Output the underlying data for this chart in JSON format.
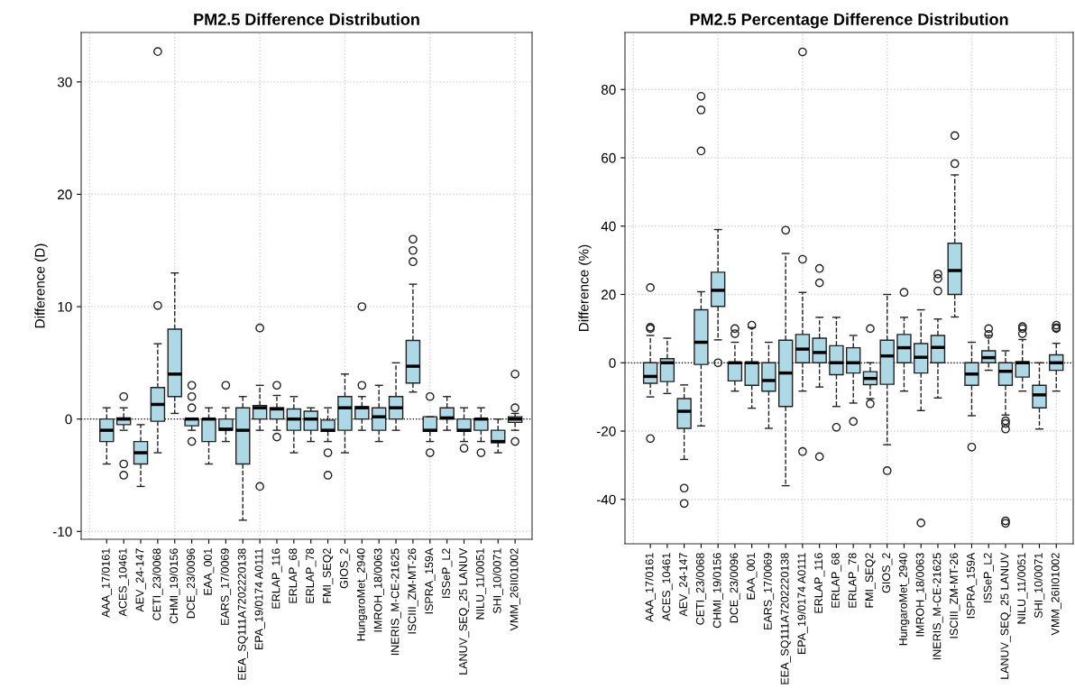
{
  "chart_data": [
    {
      "type": "box",
      "title": "PM2.5 Difference Distribution",
      "ylabel": "Difference (D)",
      "categories": [
        "AAA_17/0161",
        "ACES_10461",
        "AEV_24-147",
        "CETI_23/0068",
        "CHMI_19/0156",
        "DCE_23/0096",
        "EAA_001",
        "EARS_17/0069",
        "EEA_SQ111A7202220138",
        "EPA_19/0174 A0111",
        "ERLAP_116",
        "ERLAP_68",
        "ERLAP_78",
        "FMI_SEQ2",
        "GIOS_2",
        "HungaroMet_2940",
        "IMROH_18/0063",
        "INERIS_M-CE-21625",
        "ISCIII_ZM-MT-26",
        "ISPRA_159A",
        "ISSeP_L2",
        "LANUV_SEQ_25 LANUV",
        "NILU_11/0051",
        "SHI_10/0071",
        "VMM_26II01002"
      ],
      "color": "#add8e6",
      "boxes": [
        {
          "low": -4,
          "q1": -2,
          "median": -1,
          "q3": 0,
          "high": 1
        },
        {
          "low": -1,
          "q1": -0.5,
          "median": 0,
          "q3": 0.1,
          "high": 1,
          "outliers": [
            2,
            -4,
            -5
          ]
        },
        {
          "low": -6,
          "q1": -4,
          "median": -3,
          "q3": -2,
          "high": -0.5
        },
        {
          "low": -3,
          "q1": -0.2,
          "median": 1.3,
          "q3": 2.8,
          "high": 6.7,
          "outliers": [
            10.1,
            32.7
          ]
        },
        {
          "low": 0.5,
          "q1": 2,
          "median": 4,
          "q3": 8,
          "high": 13
        },
        {
          "low": -1,
          "q1": -0.6,
          "median": 0,
          "q3": 0,
          "high": 0,
          "outliers": [
            3,
            2,
            1,
            -2
          ]
        },
        {
          "low": -4,
          "q1": -2,
          "median": 0,
          "q3": 0,
          "high": 1
        },
        {
          "low": -2,
          "q1": -1,
          "median": -0.9,
          "q3": 0,
          "high": 1,
          "outliers": [
            3
          ]
        },
        {
          "low": -9,
          "q1": -4,
          "median": -1,
          "q3": 1,
          "high": 2
        },
        {
          "low": -1,
          "q1": 0,
          "median": 1,
          "q3": 1.2,
          "high": 3,
          "outliers": [
            8.1,
            -6
          ]
        },
        {
          "low": -1,
          "q1": 0,
          "median": 0.9,
          "q3": 1,
          "high": 2.1,
          "outliers": [
            3,
            -1.6
          ]
        },
        {
          "low": -3,
          "q1": -1,
          "median": 0,
          "q3": 0.9,
          "high": 2
        },
        {
          "low": -2,
          "q1": -1,
          "median": 0,
          "q3": 0.7,
          "high": 1
        },
        {
          "low": -2,
          "q1": -1.1,
          "median": -1,
          "q3": -0.1,
          "high": 1,
          "outliers": [
            -3,
            -5
          ]
        },
        {
          "low": -3,
          "q1": -1,
          "median": 1,
          "q3": 2,
          "high": 4
        },
        {
          "low": -1,
          "q1": 0,
          "median": 1,
          "q3": 1.1,
          "high": 2,
          "outliers": [
            10,
            3
          ]
        },
        {
          "low": -2,
          "q1": -1,
          "median": 0.2,
          "q3": 1,
          "high": 3
        },
        {
          "low": -1,
          "q1": 0,
          "median": 1,
          "q3": 2,
          "high": 5
        },
        {
          "low": 2.4,
          "q1": 3.2,
          "median": 4.7,
          "q3": 7,
          "high": 12,
          "outliers": [
            14,
            15,
            16
          ]
        },
        {
          "low": -2,
          "q1": -1.1,
          "median": -1,
          "q3": 0.2,
          "high": 0.2,
          "outliers": [
            2,
            -3
          ]
        },
        {
          "low": -1,
          "q1": 0,
          "median": 0.1,
          "q3": 1,
          "high": 2
        },
        {
          "low": -2,
          "q1": -1.1,
          "median": -1,
          "q3": 0,
          "high": 1,
          "outliers": [
            -2.6
          ]
        },
        {
          "low": -2,
          "q1": -1,
          "median": 0,
          "q3": 0,
          "high": 1,
          "outliers": [
            -3
          ]
        },
        {
          "low": -3,
          "q1": -2.1,
          "median": -2,
          "q3": -1,
          "high": 0
        },
        {
          "low": -1,
          "q1": -0.3,
          "median": 0,
          "q3": 0.2,
          "high": 0.5,
          "outliers": [
            4,
            1,
            -2
          ]
        }
      ],
      "ylim": [
        -10.7,
        34.4
      ],
      "yticks": [
        -10,
        0,
        10,
        20,
        30
      ],
      "grid": true,
      "ref_lines": [
        {
          "axis": "y",
          "value": 0,
          "line_style": "dotted",
          "color": "#000000"
        }
      ]
    },
    {
      "type": "box",
      "title": "PM2.5 Percentage Difference Distribution",
      "ylabel": "Difference (%)",
      "categories": [
        "AAA_17/0161",
        "ACES_10461",
        "AEV_24-147",
        "CETI_23/0068",
        "CHMI_19/0156",
        "DCE_23/0096",
        "EAA_001",
        "EARS_17/0069",
        "EEA_SQ111A7202220138",
        "EPA_19/0174 A0111",
        "ERLAP_116",
        "ERLAP_68",
        "ERLAP_78",
        "FMI_SEQ2",
        "GIOS_2",
        "HungaroMet_2940",
        "IMROH_18/0063",
        "INERIS_M-CE-21625",
        "ISCIII_ZM-MT-26",
        "ISPRA_159A",
        "ISSeP_L2",
        "LANUV_SEQ_25 LANUV",
        "NILU_11/0051",
        "SHI_10/0071",
        "VMM_26II01002"
      ],
      "color": "#add8e6",
      "boxes": [
        {
          "low": -10,
          "q1": -6,
          "median": -4,
          "q3": 0,
          "high": 8,
          "outliers": [
            22,
            10.4,
            10,
            -22.2
          ]
        },
        {
          "low": -9,
          "q1": -5.5,
          "median": 0,
          "q3": 1.2,
          "high": 7.2
        },
        {
          "low": -28.3,
          "q1": -19.2,
          "median": -14.2,
          "q3": -10.5,
          "high": -6.5,
          "outliers": [
            -36.7,
            -41.2
          ]
        },
        {
          "low": -18.5,
          "q1": -0.5,
          "median": 6,
          "q3": 15.5,
          "high": 20.8,
          "outliers": [
            62,
            74,
            78
          ]
        },
        {
          "low": 6.7,
          "q1": 16.5,
          "median": 21.2,
          "q3": 26.5,
          "high": 39,
          "outliers": [
            0
          ]
        },
        {
          "low": -8.3,
          "q1": -5.3,
          "median": 0,
          "q3": 0,
          "high": 6,
          "outliers": [
            10,
            8.5
          ]
        },
        {
          "low": -13.3,
          "q1": -6.6,
          "median": 0,
          "q3": 0,
          "high": 10.3,
          "outliers": [
            11
          ]
        },
        {
          "low": -19.2,
          "q1": -8.3,
          "median": -5.2,
          "q3": 0,
          "high": 6
        },
        {
          "low": -36,
          "q1": -12.8,
          "median": -3,
          "q3": 6.6,
          "high": 32,
          "outliers": [
            38.8
          ]
        },
        {
          "low": -8.3,
          "q1": 0,
          "median": 4,
          "q3": 8.3,
          "high": 20.6,
          "outliers": [
            91,
            30.3,
            -26
          ]
        },
        {
          "low": -7.1,
          "q1": 0,
          "median": 3,
          "q3": 7.2,
          "high": 13.3,
          "outliers": [
            27.6,
            23.4,
            -27.5
          ]
        },
        {
          "low": -12.8,
          "q1": -3.5,
          "median": 0,
          "q3": 5,
          "high": 13.3,
          "outliers": [
            -18.9
          ]
        },
        {
          "low": -11.8,
          "q1": -3,
          "median": 0,
          "q3": 4.4,
          "high": 8,
          "outliers": [
            -17.2
          ]
        },
        {
          "low": -10.5,
          "q1": -6.4,
          "median": -4.6,
          "q3": -2.6,
          "high": 0,
          "outliers": [
            10,
            -12
          ]
        },
        {
          "low": -24,
          "q1": -6.3,
          "median": 2,
          "q3": 6.6,
          "high": 20,
          "outliers": [
            -31.6
          ]
        },
        {
          "low": -8.3,
          "q1": 0,
          "median": 4.4,
          "q3": 8.3,
          "high": 13.3,
          "outliers": [
            20.6
          ]
        },
        {
          "low": -14,
          "q1": -3,
          "median": 1.6,
          "q3": 5.6,
          "high": 15.5,
          "outliers": [
            -46.9
          ]
        },
        {
          "low": -10.3,
          "q1": 0,
          "median": 4.5,
          "q3": 8,
          "high": 12.8,
          "outliers": [
            21,
            24.7,
            26
          ]
        },
        {
          "low": 13.4,
          "q1": 20,
          "median": 27,
          "q3": 35,
          "high": 55,
          "outliers": [
            58.3,
            66.5
          ]
        },
        {
          "low": -15.5,
          "q1": -6.6,
          "median": -3.3,
          "q3": 0,
          "high": 6,
          "outliers": [
            -24.7
          ]
        },
        {
          "low": -2.2,
          "q1": 0,
          "median": 1.5,
          "q3": 3.5,
          "high": 8,
          "outliers": [
            10,
            8.3
          ]
        },
        {
          "low": -15.3,
          "q1": -6.6,
          "median": -2.5,
          "q3": 0,
          "high": 3.5,
          "outliers": [
            -17,
            -17.8,
            -19.4,
            -46.3,
            -47
          ]
        },
        {
          "low": -8.3,
          "q1": -4.2,
          "median": 0,
          "q3": 0.3,
          "high": 6.8,
          "outliers": [
            10.6,
            10,
            8.5
          ]
        },
        {
          "low": -19.4,
          "q1": -13.2,
          "median": -9.4,
          "q3": -6.6,
          "high": 0
        },
        {
          "low": -8.3,
          "q1": -2.2,
          "median": 0,
          "q3": 2.3,
          "high": 5.7,
          "outliers": [
            11,
            10.3,
            10
          ]
        }
      ],
      "ylim": [
        -53,
        96.7
      ],
      "yticks": [
        -40,
        -20,
        0,
        20,
        40,
        60,
        80
      ],
      "grid": true,
      "ref_lines": [
        {
          "axis": "y",
          "value": 0,
          "line_style": "dotted",
          "color": "#000000"
        }
      ]
    }
  ]
}
